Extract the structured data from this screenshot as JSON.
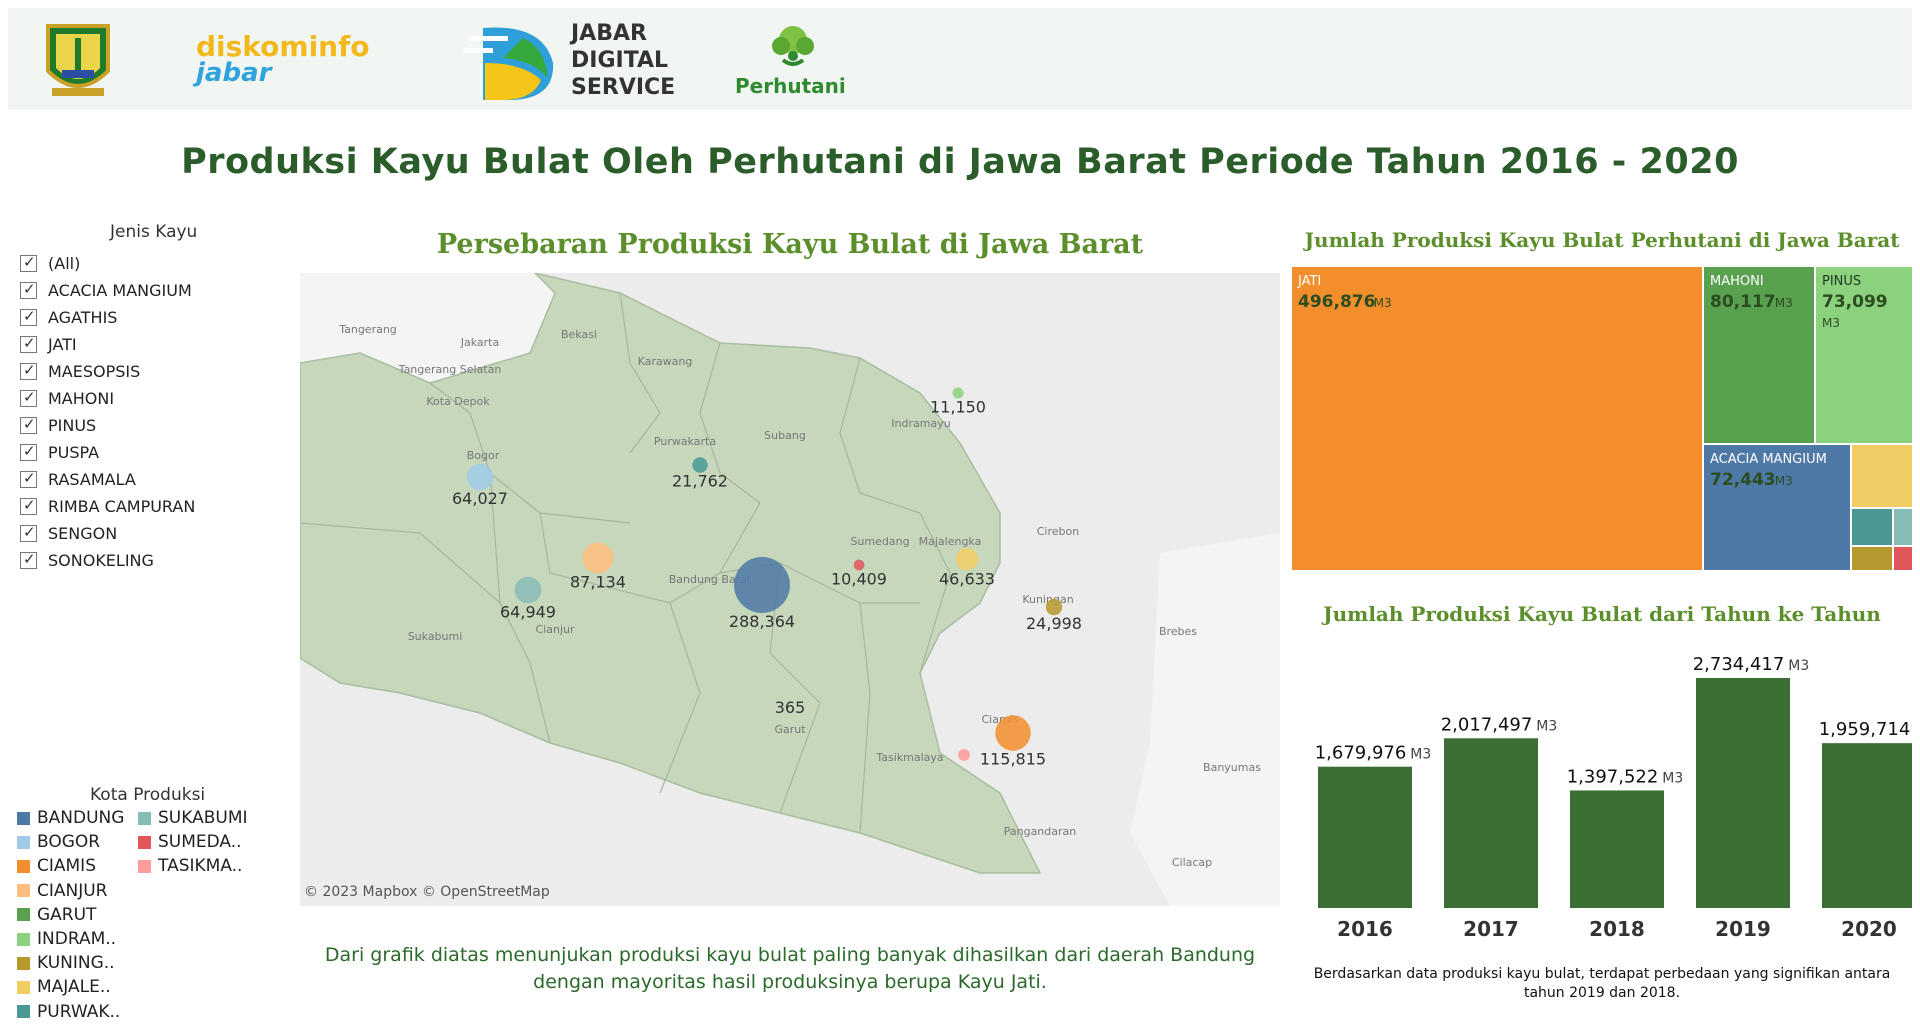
{
  "header": {
    "logos": [
      {
        "name": "west-java-emblem",
        "label": ""
      },
      {
        "name": "diskominfo-logo",
        "line1": "diskominfo",
        "line2": "jabar"
      },
      {
        "name": "jds-logo",
        "line1": "JABAR",
        "line2": "DIGITAL",
        "line3": "SERVICE"
      },
      {
        "name": "perhutani-logo",
        "label": "Perhutani"
      }
    ]
  },
  "page_title": "Produksi Kayu Bulat Oleh Perhutani di Jawa Barat Periode Tahun 2016 - 2020",
  "filter": {
    "title": "Jenis Kayu",
    "items": [
      "(All)",
      "ACACIA MANGIUM",
      "AGATHIS",
      "JATI",
      "MAESOPSIS",
      "MAHONI",
      "PINUS",
      "PUSPA",
      "RASAMALA",
      "RIMBA CAMPURAN",
      "SENGON",
      "SONOKELING"
    ]
  },
  "legend": {
    "title": "Kota Produksi",
    "items": [
      {
        "label": "BANDUNG",
        "color": "#4e79a7"
      },
      {
        "label": "BOGOR",
        "color": "#a0cbe8"
      },
      {
        "label": "CIAMIS",
        "color": "#f28e2b"
      },
      {
        "label": "CIANJUR",
        "color": "#ffbe7d"
      },
      {
        "label": "GARUT",
        "color": "#59a14f"
      },
      {
        "label": "INDRAM..",
        "color": "#8cd17d"
      },
      {
        "label": "KUNING..",
        "color": "#b6992d"
      },
      {
        "label": "MAJALE..",
        "color": "#f1ce63"
      },
      {
        "label": "PURWAK..",
        "color": "#499894"
      },
      {
        "label": "SUKABUMI",
        "color": "#86bcb6"
      },
      {
        "label": "SUMEDA..",
        "color": "#e15759"
      },
      {
        "label": "TASIKMA..",
        "color": "#ff9d9a"
      }
    ]
  },
  "map": {
    "title": "Persebaran Produksi Kayu Bulat di Jawa Barat",
    "attribution": "© 2023 Mapbox © OpenStreetMap",
    "place_labels": [
      "Tangerang",
      "Jakarta",
      "Bekasi",
      "Tangerang Selatan",
      "Karawang",
      "Kota Depok",
      "Bogor",
      "Purwakarta",
      "Subang",
      "Indramayu",
      "Majalengka",
      "Cirebon",
      "Sumedang",
      "Bandung Barat",
      "Kuningan",
      "Cianjur",
      "Sukabumi",
      "Brebes",
      "Garut",
      "Ciamis",
      "Tasikmalaya",
      "Banyumas",
      "Pangandaran",
      "Cilacap"
    ]
  },
  "caption_left": "Dari grafik diatas menunjukan produksi kayu bulat paling banyak dihasilkan dari daerah Bandung dengan mayoritas hasil produksinya berupa Kayu Jati.",
  "caption_right": "Berdasarkan data produksi kayu bulat, terdapat perbedaan yang signifikan antara tahun 2019 dan 2018.",
  "chart_data": [
    {
      "type": "scatter",
      "title": "Persebaran Produksi Kayu Bulat di Jawa Barat",
      "description": "bubble map",
      "points": [
        {
          "city": "BANDUNG",
          "value": 288364,
          "label": "288,364",
          "color": "#4e79a7"
        },
        {
          "city": "CIAMIS",
          "value": 115815,
          "label": "115,815",
          "color": "#f28e2b"
        },
        {
          "city": "CIANJUR",
          "value": 87134,
          "label": "87,134",
          "color": "#ffbe7d"
        },
        {
          "city": "SUKABUMI",
          "value": 64949,
          "label": "64,949",
          "color": "#86bcb6"
        },
        {
          "city": "BOGOR",
          "value": 64027,
          "label": "64,027",
          "color": "#a0cbe8"
        },
        {
          "city": "MAJALE..",
          "value": 46633,
          "label": "46,633",
          "color": "#f1ce63"
        },
        {
          "city": "KUNING..",
          "value": 24998,
          "label": "24,998",
          "color": "#b6992d"
        },
        {
          "city": "PURWAK..",
          "value": 21762,
          "label": "21,762",
          "color": "#499894"
        },
        {
          "city": "INDRAM..",
          "value": 11150,
          "label": "11,150",
          "color": "#8cd17d"
        },
        {
          "city": "SUMEDA..",
          "value": 10409,
          "label": "10,409",
          "color": "#e15759"
        },
        {
          "city": "GARUT",
          "value": 365,
          "label": "365",
          "color": "#59a14f"
        },
        {
          "city": "TASIKMA..",
          "value": null,
          "label": "",
          "color": "#ff9d9a"
        }
      ]
    },
    {
      "type": "heatmap",
      "title": "Jumlah Produksi Kayu Bulat Perhutani di Jawa Barat",
      "unit": "M3",
      "cells": [
        {
          "name": "JATI",
          "value": 496876,
          "label": "496,876",
          "color": "#f28e2b"
        },
        {
          "name": "MAHONI",
          "value": 80117,
          "label": "80,117",
          "color": "#59a14f"
        },
        {
          "name": "PINUS",
          "value": 73099,
          "label": "73,099",
          "color": "#8cd17d"
        },
        {
          "name": "ACACIA MANGIUM",
          "value": 72443,
          "label": "72,443",
          "color": "#4e79a7"
        },
        {
          "name": "",
          "value": null,
          "label": "",
          "color": "#f1ce63"
        },
        {
          "name": "",
          "value": null,
          "label": "",
          "color": "#499894"
        },
        {
          "name": "",
          "value": null,
          "label": "",
          "color": "#86bcb6"
        },
        {
          "name": "",
          "value": null,
          "label": "",
          "color": "#b6992d"
        },
        {
          "name": "",
          "value": null,
          "label": "",
          "color": "#e15759"
        }
      ]
    },
    {
      "type": "bar",
      "title": "Jumlah Produksi Kayu Bulat dari Tahun ke Tahun",
      "unit": "M3",
      "categories": [
        "2016",
        "2017",
        "2018",
        "2019",
        "2020"
      ],
      "values": [
        1679976,
        2017497,
        1397522,
        2734417,
        1959714
      ],
      "labels": [
        "1,679,976",
        "2,017,497",
        "1,397,522",
        "2,734,417",
        "1,959,714"
      ],
      "ylim": [
        0,
        2734417
      ],
      "color": "#3b6e33"
    }
  ]
}
